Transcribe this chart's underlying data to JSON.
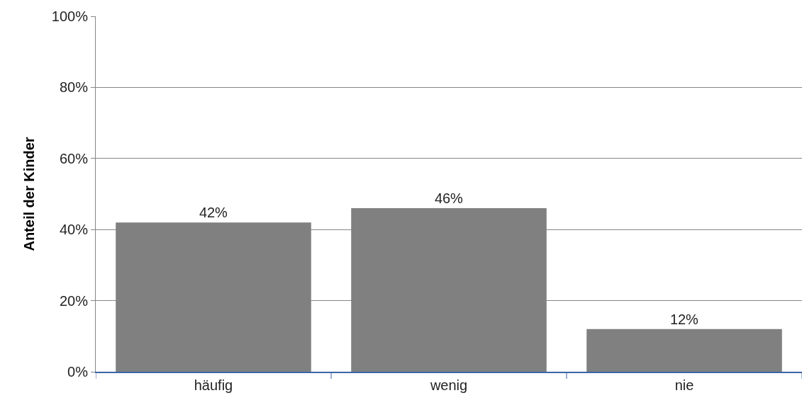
{
  "chart_data": {
    "type": "bar",
    "ylabel": "Anteil der Kinder",
    "categories": [
      "häufig",
      "wenig",
      "nie"
    ],
    "values": [
      42,
      46,
      12
    ],
    "color": "#808080",
    "value_labels": [
      "42%",
      "46%",
      "12%"
    ],
    "ylim": [
      0,
      100
    ],
    "yticks": [
      {
        "value": 0,
        "label": "0%"
      },
      {
        "value": 20,
        "label": "20%"
      },
      {
        "value": 40,
        "label": "40%"
      },
      {
        "value": 60,
        "label": "60%"
      },
      {
        "value": 80,
        "label": "80%"
      },
      {
        "value": 100,
        "label": "100%"
      }
    ],
    "grid": "y",
    "legend": false
  }
}
